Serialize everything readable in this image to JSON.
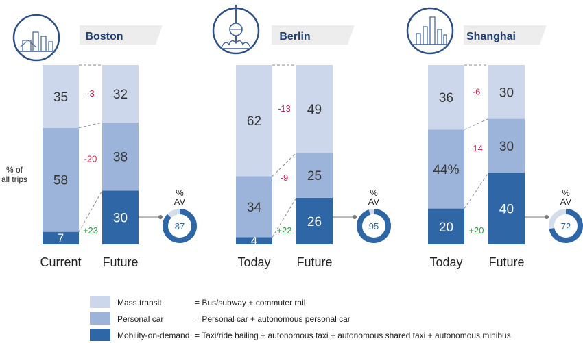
{
  "colors": {
    "mass_transit": "#ccd7ec",
    "personal_car": "#9db4da",
    "mobility_on_demand": "#2f66a5",
    "negative_delta": "#c4274e",
    "positive_delta": "#2e9e44",
    "text": "#333333",
    "ring_track": "#d5dcea",
    "header_band": "#ededed"
  },
  "y_axis_label_line1": "% of",
  "y_axis_label_line2": "all trips",
  "av_label_line1": "%",
  "av_label_line2": "AV",
  "chart_data": [
    {
      "type": "bar",
      "stacked": true,
      "title": "Boston",
      "icon": "boston-skyline-icon",
      "categories": [
        "Current",
        "Future"
      ],
      "series": [
        {
          "name": "Mobility-on-demand",
          "values": [
            7,
            30
          ]
        },
        {
          "name": "Personal car",
          "values": [
            58,
            38
          ]
        },
        {
          "name": "Mass transit",
          "values": [
            35,
            32
          ]
        }
      ],
      "segment_labels": [
        [
          "7",
          "58",
          "35"
        ],
        [
          "30",
          "38",
          "32"
        ]
      ],
      "deltas": [
        "+23",
        "-20",
        "-3"
      ],
      "av_percent": 87
    },
    {
      "type": "bar",
      "stacked": true,
      "title": "Berlin",
      "icon": "berlin-tv-tower-icon",
      "categories": [
        "Today",
        "Future"
      ],
      "series": [
        {
          "name": "Mobility-on-demand",
          "values": [
            4,
            26
          ]
        },
        {
          "name": "Personal car",
          "values": [
            34,
            25
          ]
        },
        {
          "name": "Mass transit",
          "values": [
            62,
            49
          ]
        }
      ],
      "segment_labels": [
        [
          "4",
          "34",
          "62"
        ],
        [
          "26",
          "25",
          "49"
        ]
      ],
      "deltas": [
        "+22",
        "-9",
        "-13"
      ],
      "av_percent": 95
    },
    {
      "type": "bar",
      "stacked": true,
      "title": "Shanghai",
      "icon": "shanghai-skyline-icon",
      "categories": [
        "Today",
        "Future"
      ],
      "series": [
        {
          "name": "Mobility-on-demand",
          "values": [
            20,
            40
          ]
        },
        {
          "name": "Personal car",
          "values": [
            44,
            30
          ]
        },
        {
          "name": "Mass transit",
          "values": [
            36,
            30
          ]
        }
      ],
      "segment_labels": [
        [
          "20",
          "44%",
          "36"
        ],
        [
          "40",
          "30",
          "30"
        ]
      ],
      "deltas": [
        "+20",
        "-14",
        "-6"
      ],
      "av_percent": 72
    }
  ],
  "legend": [
    {
      "label": "Mass transit",
      "definition": "= Bus/subway + commuter rail"
    },
    {
      "label": "Personal car",
      "definition": "= Personal car + autonomous personal car"
    },
    {
      "label": "Mobility-on-demand",
      "definition": "= Taxi/ride hailing + autonomous taxi + autonomous shared taxi + autonomous minibus"
    }
  ]
}
